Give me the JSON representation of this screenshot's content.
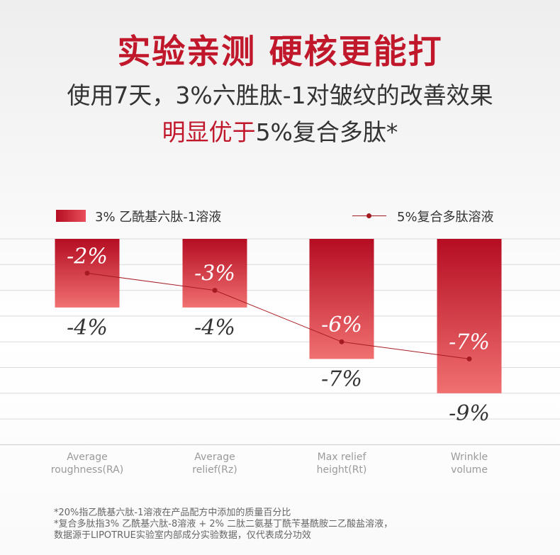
{
  "header": {
    "title": "实验亲测 硬核更能打",
    "subtitle_line1": "使用7天，3%六胜肽-1对皱纹的改善效果",
    "subtitle_line2_highlight": "明显优于",
    "subtitle_line2_rest": "5%复合多肽*"
  },
  "colors": {
    "accent": "#c1172b",
    "bar_top": "#b50d22",
    "bar_bottom": "#f07070",
    "line": "#a51b22"
  },
  "chart_data": {
    "type": "bar",
    "categories": [
      "Average roughness(RA)",
      "Average relief(Rz)",
      "Max relief height(Rt)",
      "Wrinkle volume"
    ],
    "category_lines": [
      [
        "Average",
        "roughness(RA)"
      ],
      [
        "Average",
        "relief(Rz)"
      ],
      [
        "Max relief",
        "height(Rt)"
      ],
      [
        "Wrinkle",
        "volume"
      ]
    ],
    "series": [
      {
        "name": "3% 乙酰基六肽-1溶液",
        "type": "bar",
        "values": [
          -4,
          -4,
          -7,
          -9
        ],
        "labels": [
          "-4%",
          "-4%",
          "-7%",
          "-9%"
        ]
      },
      {
        "name": "5%复合多肽溶液",
        "type": "line",
        "values": [
          -2,
          -3,
          -6,
          -7
        ],
        "labels": [
          "-2%",
          "-3%",
          "-6%",
          "-7%"
        ]
      }
    ],
    "ylim": [
      -12,
      0
    ],
    "grid": true,
    "legend_position": "top"
  },
  "footnotes": [
    "*20%指乙酰基六肽-1溶液在产品配方中添加的质量百分比",
    "*复合多肽指3% 乙酰基六肽-8溶液 + 2% 二肽二氨基丁酰苄基酰胺二乙酸盐溶液，",
    "数据源于LIPOTRUE实验室内部成分实验数据，仅代表成分功效"
  ]
}
